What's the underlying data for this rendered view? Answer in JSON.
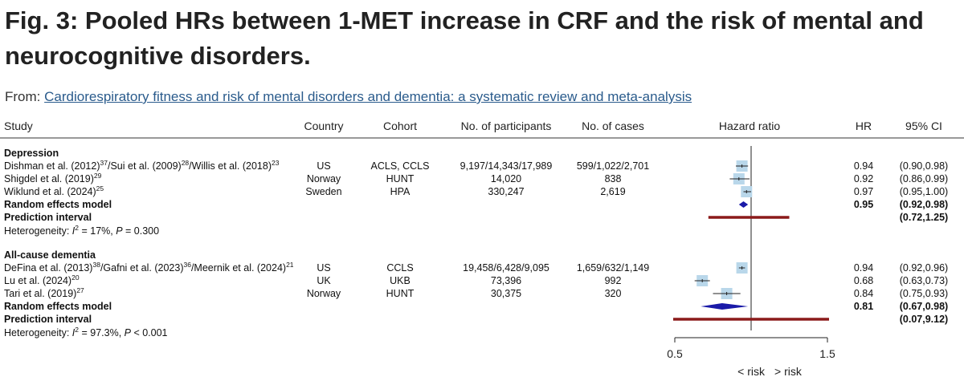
{
  "figure": {
    "title": "Fig. 3: Pooled HRs between 1-MET increase in CRF and the risk of mental and neurocognitive disorders.",
    "from_prefix": "From:",
    "from_link": "Cardiorespiratory fitness and risk of mental disorders and dementia: a systematic review and meta-analysis"
  },
  "chart_data": {
    "type": "forest",
    "headers": [
      "Study",
      "Country",
      "Cohort",
      "No. of participants",
      "No. of cases",
      "Hazard ratio",
      "HR",
      "95% CI"
    ],
    "axis": {
      "ticks": [
        "0.5",
        "1.5"
      ],
      "range": [
        0.5,
        1.5
      ],
      "reference_line": 1.0,
      "label_left": "< risk",
      "label_right": "> risk"
    },
    "colors": {
      "study_box": "#b9d7ea",
      "diamond": "#1a1aa8",
      "prediction_interval": "#8b1a1a"
    },
    "groups": [
      {
        "name": "Depression",
        "studies": [
          {
            "study": "Dishman et al. (2012)",
            "ref1": "37",
            "study2": "/Sui et al. (2009)",
            "ref2": "28",
            "study3": "/Willis et al. (2018)",
            "ref3": "23",
            "country": "US",
            "cohort": "ACLS, CCLS",
            "participants": "9,197/14,343/17,989",
            "cases": "599/1,022/2,701",
            "hr": 0.94,
            "lo": 0.9,
            "hi": 0.98,
            "hr_text": "0.94",
            "ci_text": "(0.90,0.98)"
          },
          {
            "study": "Shigdel et al. (2019)",
            "ref1": "29",
            "country": "Norway",
            "cohort": "HUNT",
            "participants": "14,020",
            "cases": "838",
            "hr": 0.92,
            "lo": 0.86,
            "hi": 0.99,
            "hr_text": "0.92",
            "ci_text": "(0.86,0.99)"
          },
          {
            "study": "Wiklund et al. (2024)",
            "ref1": "25",
            "country": "Sweden",
            "cohort": "HPA",
            "participants": "330,247",
            "cases": "2,619",
            "hr": 0.97,
            "lo": 0.95,
            "hi": 1.0,
            "hr_text": "0.97",
            "ci_text": "(0.95,1.00)"
          }
        ],
        "random_effects": {
          "label": "Random effects model",
          "hr": 0.95,
          "lo": 0.92,
          "hi": 0.98,
          "hr_text": "0.95",
          "ci_text": "(0.92,0.98)"
        },
        "prediction": {
          "label": "Prediction interval",
          "lo": 0.72,
          "hi": 1.25,
          "ci_text": "(0.72,1.25)"
        },
        "heterogeneity": {
          "prefix": "Heterogeneity: ",
          "i2_symbol": "I",
          "i2_sup": "2",
          "rest": " = 17%, ",
          "p_symbol": "P",
          "p_rest": " = 0.300"
        }
      },
      {
        "name": "All-cause dementia",
        "studies": [
          {
            "study": "DeFina et al. (2013)",
            "ref1": "38",
            "study2": "/Gafni et al. (2023)",
            "ref2": "36",
            "study3": "/Meernik et al. (2024)",
            "ref3": "21",
            "country": "US",
            "cohort": "CCLS",
            "participants": "19,458/6,428/9,095",
            "cases": "1,659/632/1,149",
            "hr": 0.94,
            "lo": 0.92,
            "hi": 0.96,
            "hr_text": "0.94",
            "ci_text": "(0.92,0.96)"
          },
          {
            "study": "Lu et al. (2024)",
            "ref1": "20",
            "country": "UK",
            "cohort": "UKB",
            "participants": "73,396",
            "cases": "992",
            "hr": 0.68,
            "lo": 0.63,
            "hi": 0.73,
            "hr_text": "0.68",
            "ci_text": "(0.63,0.73)"
          },
          {
            "study": "Tari et al. (2019)",
            "ref1": "27",
            "country": "Norway",
            "cohort": "HUNT",
            "participants": "30,375",
            "cases": "320",
            "hr": 0.84,
            "lo": 0.75,
            "hi": 0.93,
            "hr_text": "0.84",
            "ci_text": "(0.75,0.93)"
          }
        ],
        "random_effects": {
          "label": "Random effects model",
          "hr": 0.81,
          "lo": 0.67,
          "hi": 0.98,
          "hr_text": "0.81",
          "ci_text": "(0.67,0.98)"
        },
        "prediction": {
          "label": "Prediction interval",
          "lo": 0.07,
          "hi": 9.12,
          "ci_text": "(0.07,9.12)"
        },
        "heterogeneity": {
          "prefix": "Heterogeneity: ",
          "i2_symbol": "I",
          "i2_sup": "2",
          "rest": " = 97.3%, ",
          "p_symbol": "P",
          "p_rest": " < 0.001"
        }
      }
    ]
  }
}
